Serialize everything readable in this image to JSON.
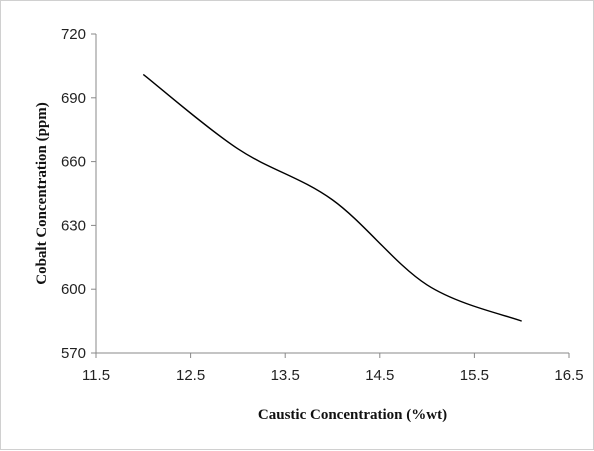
{
  "chart_data": {
    "type": "line",
    "title": "",
    "xlabel": "Caustic Concentration (%wt)",
    "ylabel": "Cobalt Concentration (ppm)",
    "xlim": [
      11.5,
      16.5
    ],
    "ylim": [
      570,
      720
    ],
    "x_ticks": [
      11.5,
      12.5,
      13.5,
      14.5,
      15.5,
      16.5
    ],
    "y_ticks": [
      570,
      600,
      630,
      660,
      690,
      720
    ],
    "grid": false,
    "legend": "none",
    "series": [
      {
        "color": "#000000",
        "x": [
          12,
          13,
          14,
          15,
          16
        ],
        "y": [
          701,
          666,
          642,
          602,
          585
        ]
      }
    ]
  }
}
